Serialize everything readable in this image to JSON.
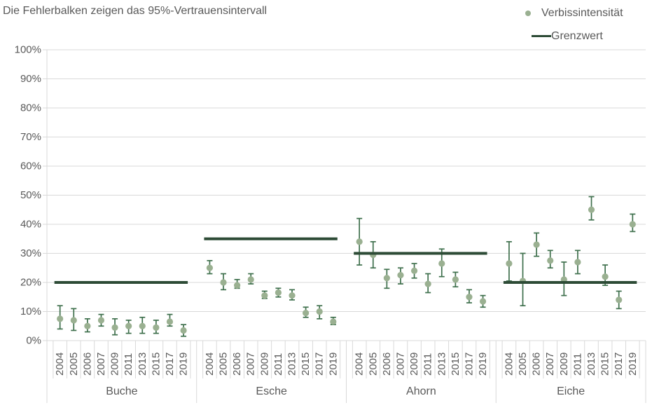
{
  "title": "Die Fehlerbalken zeigen das 95%-Vertrauensintervall",
  "legend": {
    "items": [
      {
        "label": "Verbissintensität",
        "marker": "point"
      },
      {
        "label": "Grenzwert",
        "marker": "line"
      }
    ]
  },
  "colors": {
    "point": "#9ab091",
    "error_bar": "#3f704d",
    "threshold_line": "#2d4b36",
    "gridline": "#d9d9d9",
    "axis_text": "#595959"
  },
  "y_axis": {
    "min": 0,
    "max": 100,
    "step": 10,
    "tick_labels": [
      "0%",
      "10%",
      "20%",
      "30%",
      "40%",
      "50%",
      "60%",
      "70%",
      "80%",
      "90%",
      "100%"
    ]
  },
  "chart_data": {
    "type": "scatter",
    "unit": "%",
    "title": "Die Fehlerbalken zeigen das 95%-Vertrauensintervall",
    "series_label": "Verbissintensität",
    "threshold_label": "Grenzwert",
    "ylim": [
      0,
      100
    ],
    "grid": true,
    "legend_position": "top-right",
    "years": [
      "2004",
      "2005",
      "2006",
      "2007",
      "2009",
      "2011",
      "2013",
      "2015",
      "2017",
      "2019"
    ],
    "groups": [
      {
        "name": "Buche",
        "grenzwert": 20,
        "values": [
          7.5,
          7,
          5,
          7,
          4.5,
          5,
          5,
          4.5,
          6.5,
          3.5
        ],
        "ci_low": [
          4,
          3.5,
          3,
          5,
          2,
          2.5,
          2.5,
          2.5,
          5,
          1.5
        ],
        "ci_high": [
          12,
          11,
          7.5,
          9,
          7.5,
          7,
          8,
          7,
          9,
          5.5
        ]
      },
      {
        "name": "Esche",
        "grenzwert": 35,
        "values": [
          25,
          20,
          19,
          21,
          15.5,
          16.5,
          15.5,
          9.5,
          10,
          6.5
        ],
        "ci_low": [
          23,
          17.5,
          18,
          19.5,
          14.5,
          15,
          14,
          8,
          7.5,
          5.5
        ],
        "ci_high": [
          27.5,
          23,
          21,
          23,
          17,
          18,
          17.5,
          11.5,
          12,
          8
        ]
      },
      {
        "name": "Ahorn",
        "grenzwert": 30,
        "values": [
          34,
          29.5,
          21.5,
          22.5,
          24,
          19.5,
          26.5,
          21,
          15,
          13.5
        ],
        "ci_low": [
          26,
          25,
          18,
          19.5,
          21.5,
          16.5,
          22,
          18.5,
          13,
          11.5
        ],
        "ci_high": [
          42,
          34,
          24.5,
          25,
          26.5,
          23,
          31.5,
          23.5,
          17.5,
          15.5
        ]
      },
      {
        "name": "Eiche",
        "grenzwert": 20,
        "values": [
          26.5,
          20.5,
          33,
          27.5,
          21,
          27,
          45,
          22,
          14,
          40
        ],
        "ci_low": [
          20.5,
          12,
          29,
          25,
          15.5,
          23,
          41.5,
          19,
          11,
          37.5
        ],
        "ci_high": [
          34,
          30,
          37,
          31,
          27,
          31,
          49.5,
          26,
          17,
          43.5
        ]
      }
    ]
  }
}
